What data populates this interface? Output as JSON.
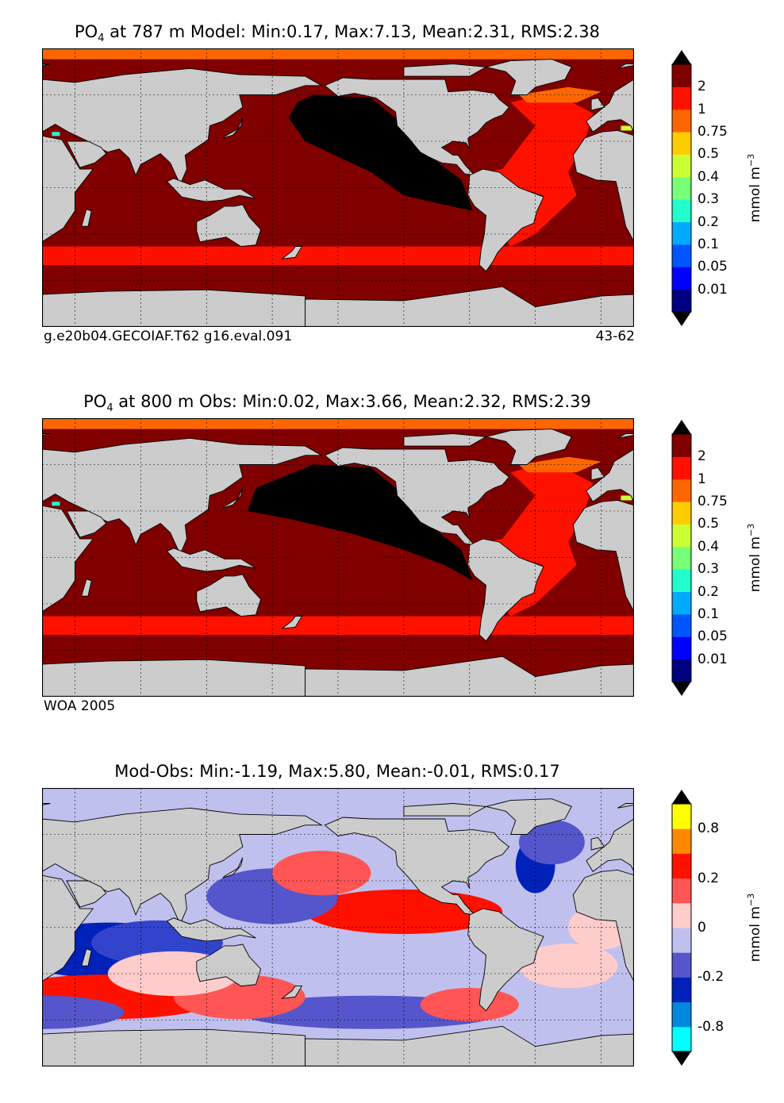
{
  "panels": [
    {
      "title_prefix": "PO",
      "title_sub": "4",
      "title_rest": " at 787 m Model: Min:0.17, Max:7.13, Mean:2.31, RMS:2.38",
      "subtitle_left": "g.e20b04.GECOIAF.T62 g16.eval.091",
      "subtitle_right": "43-62",
      "colorbar": {
        "labels": [
          "2",
          "1",
          "0.75",
          "0.5",
          "0.4",
          "0.3",
          "0.2",
          "0.1",
          "0.05",
          "0.01"
        ],
        "unit_text": "mmol m",
        "unit_sup": "−3",
        "colors": [
          "#000080",
          "#0000ff",
          "#0055ff",
          "#00aaff",
          "#22ffcc",
          "#77ff77",
          "#ccff33",
          "#ffcc00",
          "#ff6600",
          "#ff1100",
          "#800000"
        ]
      }
    },
    {
      "title_prefix": "PO",
      "title_sub": "4",
      "title_rest": " at 800 m Obs: Min:0.02, Max:3.66, Mean:2.32, RMS:2.39",
      "subtitle_left": "WOA 2005",
      "subtitle_right": "",
      "colorbar": {
        "labels": [
          "2",
          "1",
          "0.75",
          "0.5",
          "0.4",
          "0.3",
          "0.2",
          "0.1",
          "0.05",
          "0.01"
        ],
        "unit_text": "mmol m",
        "unit_sup": "−3",
        "colors": [
          "#000080",
          "#0000ff",
          "#0055ff",
          "#00aaff",
          "#22ffcc",
          "#77ff77",
          "#ccff33",
          "#ffcc00",
          "#ff6600",
          "#ff1100",
          "#800000"
        ]
      }
    },
    {
      "title_prefix": "",
      "title_sub": "",
      "title_rest": "Mod-Obs: Min:-1.19, Max:5.80, Mean:-0.01, RMS:0.17",
      "subtitle_left": "",
      "subtitle_right": "",
      "colorbar": {
        "labels": [
          "0.8",
          "0.2",
          "0",
          "-0.2",
          "-0.8"
        ],
        "unit_text": "mmol m",
        "unit_sup": "−3",
        "colors": [
          "#00ffff",
          "#0088dd",
          "#0022bb",
          "#5555cc",
          "#c0c0ee",
          "#ffcccc",
          "#ff5555",
          "#ff1100",
          "#ff8800",
          "#ffff00"
        ]
      }
    }
  ],
  "chart_data": [
    {
      "type": "heatmap",
      "title": "PO4 at 787 m Model: Min:0.17, Max:7.13, Mean:2.31, RMS:2.38",
      "subtitle": "g.e20b04.GECOIAF.T62 g16.eval.091 — 43-62",
      "stats": {
        "min": 0.17,
        "max": 7.13,
        "mean": 2.31,
        "rms": 2.38
      },
      "depth_m": 787,
      "colorbar_levels": [
        0.01,
        0.05,
        0.1,
        0.2,
        0.3,
        0.4,
        0.5,
        0.75,
        1,
        2
      ],
      "colorbar_label": "mmol m^-3",
      "grid": true
    },
    {
      "type": "heatmap",
      "title": "PO4 at 800 m Obs: Min:0.02, Max:3.66, Mean:2.32, RMS:2.39",
      "subtitle": "WOA 2005",
      "stats": {
        "min": 0.02,
        "max": 3.66,
        "mean": 2.32,
        "rms": 2.39
      },
      "depth_m": 800,
      "colorbar_levels": [
        0.01,
        0.05,
        0.1,
        0.2,
        0.3,
        0.4,
        0.5,
        0.75,
        1,
        2
      ],
      "colorbar_label": "mmol m^-3",
      "grid": true
    },
    {
      "type": "heatmap",
      "title": "Mod-Obs: Min:-1.19, Max:5.80, Mean:-0.01, RMS:0.17",
      "stats": {
        "min": -1.19,
        "max": 5.8,
        "mean": -0.01,
        "rms": 0.17
      },
      "colorbar_levels": [
        -0.8,
        -0.2,
        0,
        0.2,
        0.8
      ],
      "colorbar_label": "mmol m^-3",
      "grid": true
    }
  ]
}
